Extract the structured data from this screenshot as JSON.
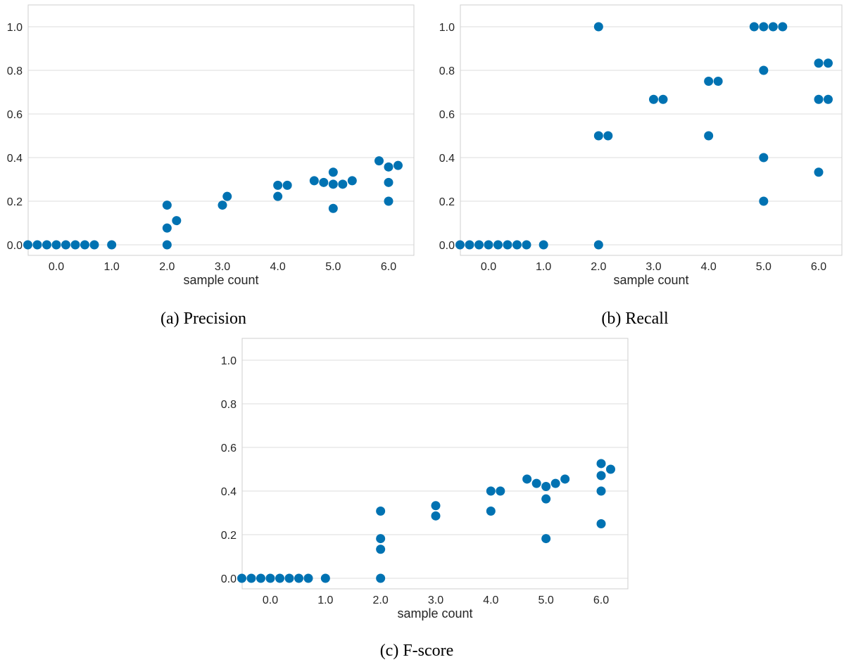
{
  "style": {
    "point_color": "#0072b2",
    "grid": true,
    "gridlines": "horizontal"
  },
  "chart_data": [
    {
      "type": "scatter",
      "caption": "(a) Precision",
      "xlabel": "sample count",
      "ylabel": "",
      "x_ticks": [
        "0.0",
        "1.0",
        "2.0",
        "3.0",
        "4.0",
        "5.0",
        "6.0"
      ],
      "y_ticks": [
        "0.0",
        "0.2",
        "0.4",
        "0.6",
        "0.8",
        "1.0"
      ],
      "ylim": [
        -0.03,
        1.1
      ],
      "x_category_positions": [
        0,
        1,
        2,
        3,
        4,
        5,
        6
      ],
      "points": [
        {
          "x": 0,
          "y": 0.0
        },
        {
          "x": 0,
          "y": 0.0
        },
        {
          "x": 0,
          "y": 0.0
        },
        {
          "x": 0,
          "y": 0.0
        },
        {
          "x": 0,
          "y": 0.0
        },
        {
          "x": 0,
          "y": 0.0
        },
        {
          "x": 0,
          "y": 0.0
        },
        {
          "x": 0,
          "y": 0.0
        },
        {
          "x": 1,
          "y": 0.0
        },
        {
          "x": 2,
          "y": 0.0
        },
        {
          "x": 2,
          "y": 0.077
        },
        {
          "x": 2,
          "y": 0.111
        },
        {
          "x": 2,
          "y": 0.182
        },
        {
          "x": 3,
          "y": 0.182
        },
        {
          "x": 3,
          "y": 0.222
        },
        {
          "x": 4,
          "y": 0.222
        },
        {
          "x": 4,
          "y": 0.273
        },
        {
          "x": 4,
          "y": 0.273
        },
        {
          "x": 5,
          "y": 0.167
        },
        {
          "x": 5,
          "y": 0.278
        },
        {
          "x": 5,
          "y": 0.278
        },
        {
          "x": 5,
          "y": 0.286
        },
        {
          "x": 5,
          "y": 0.294
        },
        {
          "x": 5,
          "y": 0.294
        },
        {
          "x": 5,
          "y": 0.333
        },
        {
          "x": 6,
          "y": 0.2
        },
        {
          "x": 6,
          "y": 0.286
        },
        {
          "x": 6,
          "y": 0.357
        },
        {
          "x": 6,
          "y": 0.364
        },
        {
          "x": 6,
          "y": 0.385
        }
      ]
    },
    {
      "type": "scatter",
      "caption": "(b) Recall",
      "xlabel": "sample count",
      "ylabel": "",
      "x_ticks": [
        "0.0",
        "1.0",
        "2.0",
        "3.0",
        "4.0",
        "5.0",
        "6.0"
      ],
      "y_ticks": [
        "0.0",
        "0.2",
        "0.4",
        "0.6",
        "0.8",
        "1.0"
      ],
      "ylim": [
        -0.03,
        1.1
      ],
      "x_category_positions": [
        0,
        1,
        2,
        3,
        4,
        5,
        6
      ],
      "points": [
        {
          "x": 0,
          "y": 0.0
        },
        {
          "x": 0,
          "y": 0.0
        },
        {
          "x": 0,
          "y": 0.0
        },
        {
          "x": 0,
          "y": 0.0
        },
        {
          "x": 0,
          "y": 0.0
        },
        {
          "x": 0,
          "y": 0.0
        },
        {
          "x": 0,
          "y": 0.0
        },
        {
          "x": 0,
          "y": 0.0
        },
        {
          "x": 1,
          "y": 0.0
        },
        {
          "x": 2,
          "y": 0.0
        },
        {
          "x": 2,
          "y": 0.5
        },
        {
          "x": 2,
          "y": 0.5
        },
        {
          "x": 2,
          "y": 1.0
        },
        {
          "x": 3,
          "y": 0.667
        },
        {
          "x": 3,
          "y": 0.667
        },
        {
          "x": 4,
          "y": 0.5
        },
        {
          "x": 4,
          "y": 0.75
        },
        {
          "x": 4,
          "y": 0.75
        },
        {
          "x": 5,
          "y": 0.2
        },
        {
          "x": 5,
          "y": 0.4
        },
        {
          "x": 5,
          "y": 0.8
        },
        {
          "x": 5,
          "y": 1.0
        },
        {
          "x": 5,
          "y": 1.0
        },
        {
          "x": 5,
          "y": 1.0
        },
        {
          "x": 5,
          "y": 1.0
        },
        {
          "x": 6,
          "y": 0.333
        },
        {
          "x": 6,
          "y": 0.667
        },
        {
          "x": 6,
          "y": 0.667
        },
        {
          "x": 6,
          "y": 0.833
        },
        {
          "x": 6,
          "y": 0.833
        }
      ]
    },
    {
      "type": "scatter",
      "caption": "(c) F-score",
      "xlabel": "sample count",
      "ylabel": "",
      "x_ticks": [
        "0.0",
        "1.0",
        "2.0",
        "3.0",
        "4.0",
        "5.0",
        "6.0"
      ],
      "y_ticks": [
        "0.0",
        "0.2",
        "0.4",
        "0.6",
        "0.8",
        "1.0"
      ],
      "ylim": [
        -0.03,
        1.1
      ],
      "x_category_positions": [
        0,
        1,
        2,
        3,
        4,
        5,
        6
      ],
      "points": [
        {
          "x": 0,
          "y": 0.0
        },
        {
          "x": 0,
          "y": 0.0
        },
        {
          "x": 0,
          "y": 0.0
        },
        {
          "x": 0,
          "y": 0.0
        },
        {
          "x": 0,
          "y": 0.0
        },
        {
          "x": 0,
          "y": 0.0
        },
        {
          "x": 0,
          "y": 0.0
        },
        {
          "x": 0,
          "y": 0.0
        },
        {
          "x": 1,
          "y": 0.0
        },
        {
          "x": 2,
          "y": 0.0
        },
        {
          "x": 2,
          "y": 0.133
        },
        {
          "x": 2,
          "y": 0.182
        },
        {
          "x": 2,
          "y": 0.308
        },
        {
          "x": 3,
          "y": 0.286
        },
        {
          "x": 3,
          "y": 0.333
        },
        {
          "x": 4,
          "y": 0.308
        },
        {
          "x": 4,
          "y": 0.4
        },
        {
          "x": 4,
          "y": 0.4
        },
        {
          "x": 5,
          "y": 0.182
        },
        {
          "x": 5,
          "y": 0.364
        },
        {
          "x": 5,
          "y": 0.421
        },
        {
          "x": 5,
          "y": 0.435
        },
        {
          "x": 5,
          "y": 0.435
        },
        {
          "x": 5,
          "y": 0.455
        },
        {
          "x": 5,
          "y": 0.455
        },
        {
          "x": 6,
          "y": 0.25
        },
        {
          "x": 6,
          "y": 0.4
        },
        {
          "x": 6,
          "y": 0.471
        },
        {
          "x": 6,
          "y": 0.5
        },
        {
          "x": 6,
          "y": 0.526
        }
      ]
    }
  ]
}
